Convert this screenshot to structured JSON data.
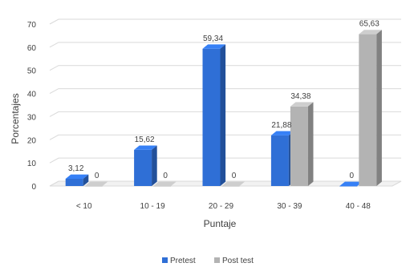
{
  "chart_data": {
    "type": "bar",
    "categories": [
      "< 10",
      "10 - 19",
      "20 - 29",
      "30 - 39",
      "40 - 48"
    ],
    "series": [
      {
        "name": "Pretest",
        "values": [
          3.12,
          15.62,
          59.34,
          21.88,
          0
        ],
        "labels": [
          "3,12",
          "15,62",
          "59,34",
          "21,88",
          "0"
        ],
        "color": "#2f6fd6"
      },
      {
        "name": "Post test",
        "values": [
          0,
          0,
          0,
          34.38,
          65.63
        ],
        "labels": [
          "0",
          "0",
          "0",
          "34,38",
          "65,63"
        ],
        "color": "#b3b3b3"
      }
    ],
    "xlabel": "Puntaje",
    "ylabel": "Porcentajes",
    "ylim": [
      0,
      70
    ],
    "yticks": [
      0,
      10,
      20,
      30,
      40,
      50,
      60,
      70
    ],
    "grid": true,
    "legend_position": "bottom"
  }
}
